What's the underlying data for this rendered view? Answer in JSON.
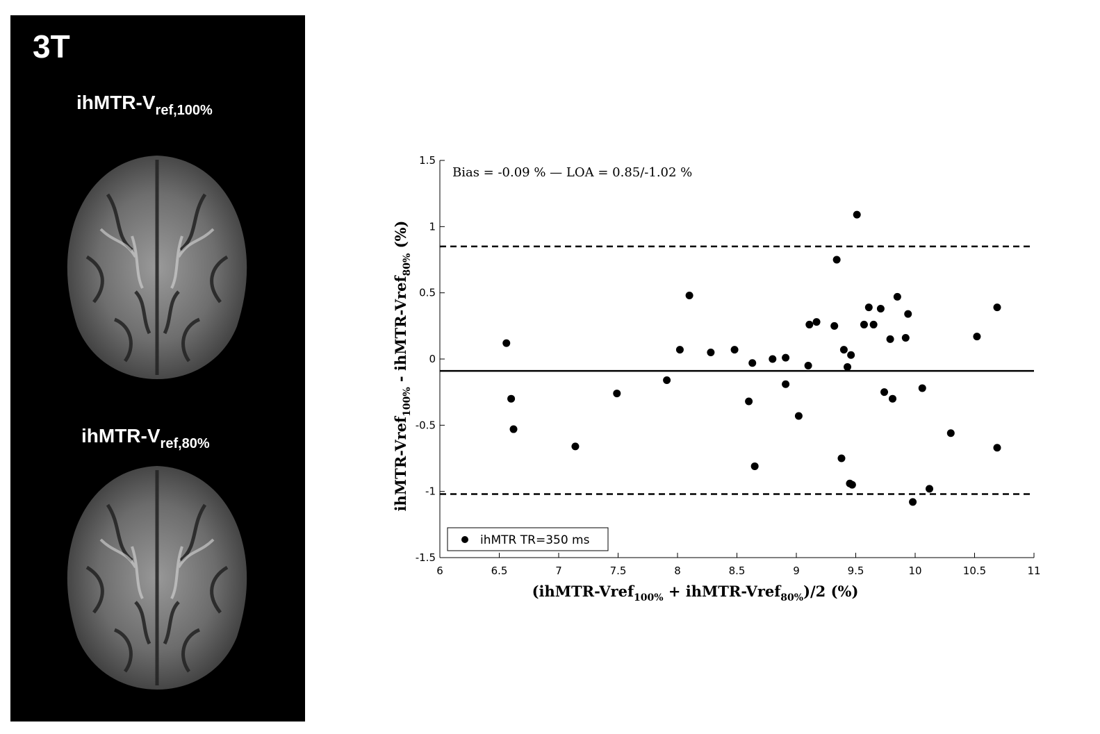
{
  "left_panel": {
    "field_strength": "3T",
    "image_label_top": {
      "base": "ihMTR-V",
      "sub": "ref,100%"
    },
    "image_label_bottom": {
      "base": "ihMTR-V",
      "sub": "ref,80%"
    }
  },
  "chart_data": {
    "type": "scatter",
    "annotation": "Bias = -0.09 % — LOA = 0.85/-1.02 %",
    "xlabel": {
      "pre": "(ihMTR-Vref",
      "sub1": "100%",
      "mid": " + ihMTR-Vref",
      "sub2": "80%",
      "post": ")/2 (%)"
    },
    "ylabel": {
      "pre": "ihMTR-Vref",
      "sub1": "100%",
      "mid": " - ihMTR-Vref",
      "sub2": "80%",
      "post": " (%)"
    },
    "xlim": [
      6,
      11
    ],
    "ylim": [
      -1.5,
      1.5
    ],
    "xticks": [
      6,
      6.5,
      7,
      7.5,
      8,
      8.5,
      9,
      9.5,
      10,
      10.5,
      11
    ],
    "xtick_labels": [
      "6",
      "6.5",
      "7",
      "7.5",
      "8",
      "8.5",
      "9",
      "9.5",
      "10",
      "10.5",
      "11"
    ],
    "yticks": [
      -1.5,
      -1,
      -0.5,
      0,
      0.5,
      1,
      1.5
    ],
    "ytick_labels": [
      "-1.5",
      "-1",
      "-0.5",
      "0",
      "0.5",
      "1",
      "1.5"
    ],
    "bias": -0.09,
    "loa_upper": 0.85,
    "loa_lower": -1.02,
    "legend": {
      "label": "ihMTR TR=350 ms",
      "position": "bottom-left"
    },
    "series": [
      {
        "name": "ihMTR TR=350 ms",
        "color": "#000000",
        "points": [
          [
            6.56,
            0.12
          ],
          [
            6.6,
            -0.3
          ],
          [
            6.62,
            -0.53
          ],
          [
            7.14,
            -0.66
          ],
          [
            7.49,
            -0.26
          ],
          [
            7.91,
            -0.16
          ],
          [
            8.02,
            0.07
          ],
          [
            8.1,
            0.48
          ],
          [
            8.28,
            0.05
          ],
          [
            8.48,
            0.07
          ],
          [
            8.6,
            -0.32
          ],
          [
            8.63,
            -0.03
          ],
          [
            8.65,
            -0.81
          ],
          [
            8.8,
            0.0
          ],
          [
            8.91,
            0.01
          ],
          [
            8.91,
            -0.19
          ],
          [
            9.02,
            -0.43
          ],
          [
            9.1,
            -0.05
          ],
          [
            9.11,
            0.26
          ],
          [
            9.17,
            0.28
          ],
          [
            9.32,
            0.25
          ],
          [
            9.34,
            0.75
          ],
          [
            9.38,
            -0.75
          ],
          [
            9.4,
            0.07
          ],
          [
            9.43,
            -0.06
          ],
          [
            9.45,
            -0.94
          ],
          [
            9.46,
            0.03
          ],
          [
            9.47,
            -0.95
          ],
          [
            9.51,
            1.09
          ],
          [
            9.57,
            0.26
          ],
          [
            9.61,
            0.39
          ],
          [
            9.65,
            0.26
          ],
          [
            9.71,
            0.38
          ],
          [
            9.74,
            -0.25
          ],
          [
            9.79,
            0.15
          ],
          [
            9.81,
            -0.3
          ],
          [
            9.85,
            0.47
          ],
          [
            9.92,
            0.16
          ],
          [
            9.94,
            0.34
          ],
          [
            9.98,
            -1.08
          ],
          [
            10.06,
            -0.22
          ],
          [
            10.12,
            -0.98
          ],
          [
            10.3,
            -0.56
          ],
          [
            10.52,
            0.17
          ],
          [
            10.69,
            0.39
          ],
          [
            10.69,
            -0.67
          ]
        ]
      }
    ]
  }
}
